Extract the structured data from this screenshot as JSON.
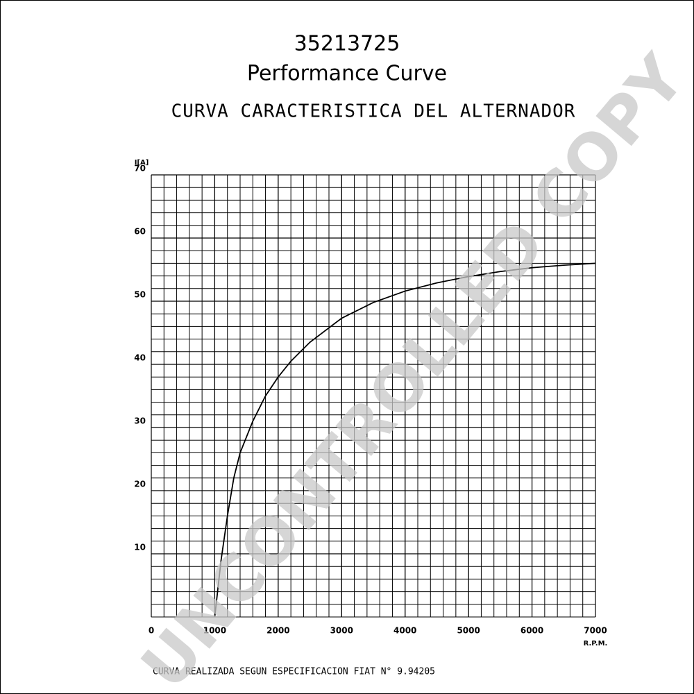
{
  "chart_data": {
    "type": "line",
    "title": "35213725",
    "subtitle": "Performance Curve",
    "heading": "CURVA CARACTERISTICA DEL ALTERNADOR",
    "y_label": "I[A]",
    "x_label": "R.P.M.",
    "footnote": "CURVA REALIZADA SEGUN ESPECIFICACION FIAT N° 9.94205",
    "watermark": "UNCONTROLLED COPY",
    "x": [
      1000,
      1100,
      1200,
      1300,
      1400,
      1600,
      1800,
      2000,
      2200,
      2500,
      3000,
      3500,
      4000,
      4500,
      5000,
      5500,
      6000,
      6500,
      7000
    ],
    "series": [
      {
        "color": "#000000",
        "values": [
          0,
          9,
          16,
          22,
          26,
          31,
          35,
          38,
          40.5,
          43.5,
          47.3,
          49.8,
          51.6,
          52.9,
          53.9,
          54.7,
          55.3,
          55.7,
          56
        ]
      }
    ],
    "xlim": [
      0,
      7000
    ],
    "xticks": [
      0,
      1000,
      2000,
      3000,
      4000,
      5000,
      6000,
      7000
    ],
    "ylim": [
      0,
      70
    ],
    "yticks": [
      10,
      20,
      30,
      40,
      50,
      60,
      70
    ],
    "grid": true
  }
}
